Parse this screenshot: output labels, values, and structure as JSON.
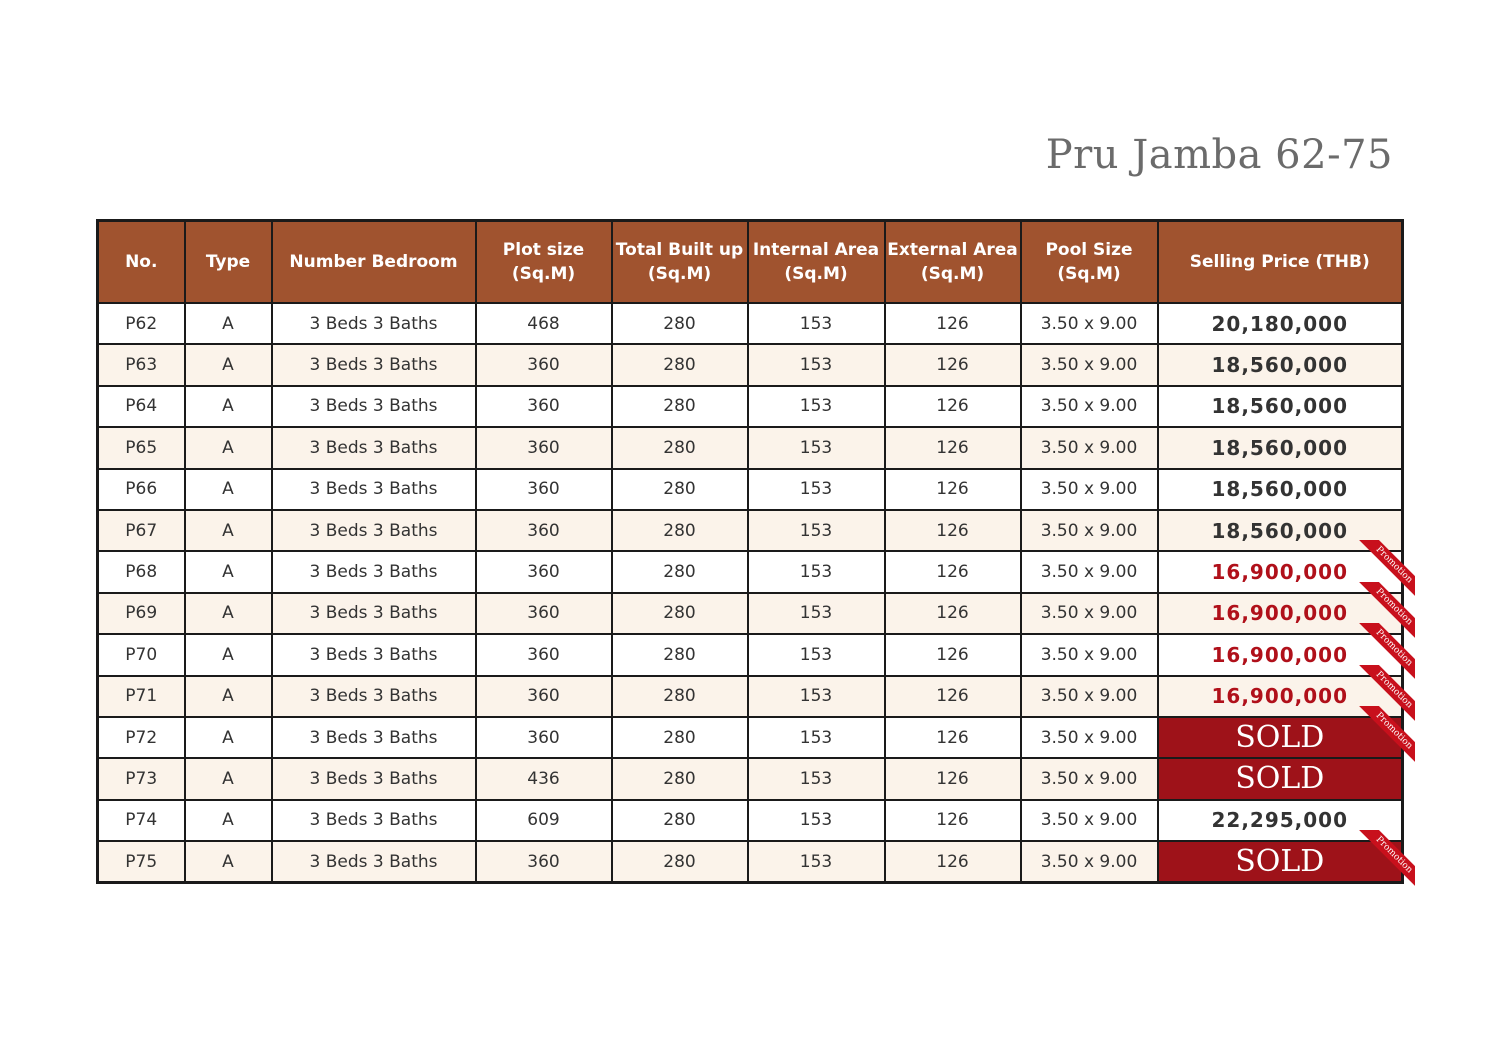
{
  "title": "Pru Jamba 62-75",
  "colors": {
    "header": "#a0532f",
    "promotion": "#b0101a",
    "sold": "#9e1219"
  },
  "columns": [
    "No.",
    "Type",
    "Number Bedroom",
    "Plot size\n(Sq.M)",
    "Total Built up\n(Sq.M)",
    "Internal Area\n(Sq.M)",
    "External Area\n(Sq.M)",
    "Pool Size\n(Sq.M)",
    "Selling Price (THB)"
  ],
  "ribbon_label": "Promotion",
  "rows": [
    {
      "no": "P62",
      "type": "A",
      "bedroom": "3 Beds 3 Baths",
      "plot": "468",
      "built": "280",
      "internal": "153",
      "external": "126",
      "pool": "3.50 x 9.00",
      "price": "20,180,000",
      "status": "normal",
      "promotion": false
    },
    {
      "no": "P63",
      "type": "A",
      "bedroom": "3 Beds 3 Baths",
      "plot": "360",
      "built": "280",
      "internal": "153",
      "external": "126",
      "pool": "3.50 x 9.00",
      "price": "18,560,000",
      "status": "normal",
      "promotion": false
    },
    {
      "no": "P64",
      "type": "A",
      "bedroom": "3 Beds 3 Baths",
      "plot": "360",
      "built": "280",
      "internal": "153",
      "external": "126",
      "pool": "3.50 x 9.00",
      "price": "18,560,000",
      "status": "normal",
      "promotion": false
    },
    {
      "no": "P65",
      "type": "A",
      "bedroom": "3 Beds 3 Baths",
      "plot": "360",
      "built": "280",
      "internal": "153",
      "external": "126",
      "pool": "3.50 x 9.00",
      "price": "18,560,000",
      "status": "normal",
      "promotion": false
    },
    {
      "no": "P66",
      "type": "A",
      "bedroom": "3 Beds 3 Baths",
      "plot": "360",
      "built": "280",
      "internal": "153",
      "external": "126",
      "pool": "3.50 x 9.00",
      "price": "18,560,000",
      "status": "normal",
      "promotion": false
    },
    {
      "no": "P67",
      "type": "A",
      "bedroom": "3 Beds 3 Baths",
      "plot": "360",
      "built": "280",
      "internal": "153",
      "external": "126",
      "pool": "3.50 x 9.00",
      "price": "18,560,000",
      "status": "normal",
      "promotion": false
    },
    {
      "no": "P68",
      "type": "A",
      "bedroom": "3 Beds 3 Baths",
      "plot": "360",
      "built": "280",
      "internal": "153",
      "external": "126",
      "pool": "3.50 x 9.00",
      "price": "16,900,000",
      "status": "promo",
      "promotion": true
    },
    {
      "no": "P69",
      "type": "A",
      "bedroom": "3 Beds 3 Baths",
      "plot": "360",
      "built": "280",
      "internal": "153",
      "external": "126",
      "pool": "3.50 x 9.00",
      "price": "16,900,000",
      "status": "promo",
      "promotion": true
    },
    {
      "no": "P70",
      "type": "A",
      "bedroom": "3 Beds 3 Baths",
      "plot": "360",
      "built": "280",
      "internal": "153",
      "external": "126",
      "pool": "3.50 x 9.00",
      "price": "16,900,000",
      "status": "promo",
      "promotion": true
    },
    {
      "no": "P71",
      "type": "A",
      "bedroom": "3 Beds 3 Baths",
      "plot": "360",
      "built": "280",
      "internal": "153",
      "external": "126",
      "pool": "3.50 x 9.00",
      "price": "16,900,000",
      "status": "promo",
      "promotion": true
    },
    {
      "no": "P72",
      "type": "A",
      "bedroom": "3 Beds 3 Baths",
      "plot": "360",
      "built": "280",
      "internal": "153",
      "external": "126",
      "pool": "3.50 x 9.00",
      "price": "SOLD",
      "status": "sold",
      "promotion": true
    },
    {
      "no": "P73",
      "type": "A",
      "bedroom": "3 Beds 3 Baths",
      "plot": "436",
      "built": "280",
      "internal": "153",
      "external": "126",
      "pool": "3.50 x 9.00",
      "price": "SOLD",
      "status": "sold",
      "promotion": false
    },
    {
      "no": "P74",
      "type": "A",
      "bedroom": "3 Beds 3 Baths",
      "plot": "609",
      "built": "280",
      "internal": "153",
      "external": "126",
      "pool": "3.50 x 9.00",
      "price": "22,295,000",
      "status": "normal",
      "promotion": false
    },
    {
      "no": "P75",
      "type": "A",
      "bedroom": "3 Beds 3 Baths",
      "plot": "360",
      "built": "280",
      "internal": "153",
      "external": "126",
      "pool": "3.50 x 9.00",
      "price": "SOLD",
      "status": "sold",
      "promotion": true
    }
  ]
}
